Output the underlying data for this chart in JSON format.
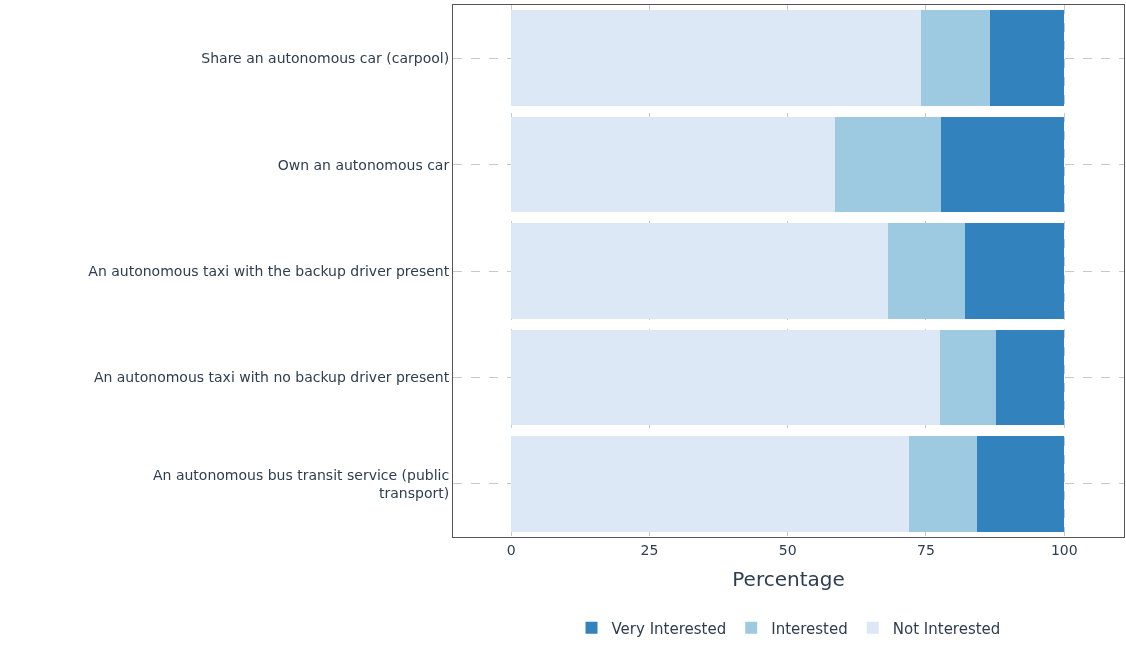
{
  "chart_data": {
    "type": "bar",
    "orientation": "horizontal",
    "stacked": true,
    "categories": [
      "Share an autonomous car (carpool)",
      "Own an autonomous car",
      "An autonomous taxi with the backup driver present",
      "An autonomous taxi with no backup driver present",
      "An autonomous bus transit service (public\ntransport)"
    ],
    "series": [
      {
        "name": "Not Interested",
        "color": "#dce8f6",
        "values": [
          74.1,
          58.6,
          68.1,
          77.6,
          72.0
        ]
      },
      {
        "name": "Interested",
        "color": "#9ecae1",
        "values": [
          12.4,
          19.2,
          14.0,
          10.0,
          12.2
        ]
      },
      {
        "name": "Very Interested",
        "color": "#3182bd",
        "values": [
          13.5,
          22.2,
          17.9,
          12.4,
          15.8
        ]
      }
    ],
    "xlabel": "Percentage",
    "xlim": [
      -10.5,
      110.8
    ],
    "xticks": [
      0,
      25,
      50,
      75,
      100
    ],
    "grid": true,
    "legend": "bottom"
  }
}
